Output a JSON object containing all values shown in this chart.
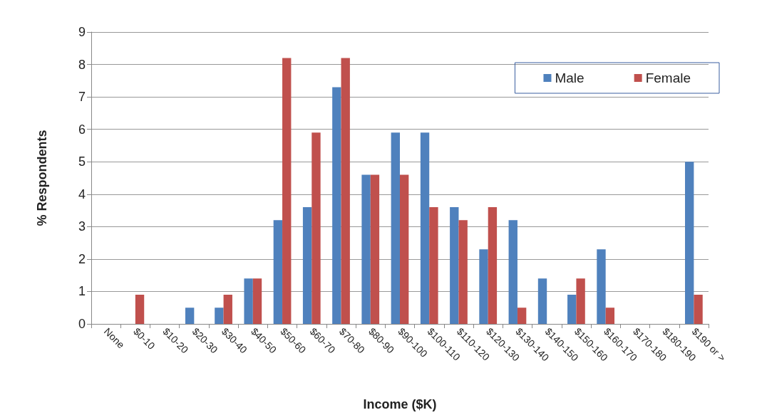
{
  "chart_data": {
    "type": "bar",
    "xlabel": "Income ($K)",
    "ylabel": "% Respondents",
    "categories": [
      "None",
      "$0-10",
      "$10-20",
      "$20-30",
      "$30-40",
      "$40-50",
      "$50-60",
      "$60-70",
      "$70-80",
      "$80-90",
      "$90-100",
      "$100-110",
      "$110-120",
      "$120-130",
      "$130-140",
      "$140-150",
      "$150-160",
      "$160-170",
      "$170-180",
      "$180-190",
      "$190 or >"
    ],
    "series": [
      {
        "name": "Male",
        "color": "#4f81bd",
        "values": [
          0,
          0,
          0,
          0.5,
          0.5,
          1.4,
          3.2,
          3.6,
          7.3,
          4.6,
          5.9,
          5.9,
          3.6,
          2.3,
          3.2,
          1.4,
          0.9,
          2.3,
          0,
          0,
          5.0
        ]
      },
      {
        "name": "Female",
        "color": "#c0504d",
        "values": [
          0,
          0.9,
          0,
          0,
          0.9,
          1.4,
          8.2,
          5.9,
          8.2,
          4.6,
          4.6,
          3.6,
          3.2,
          3.6,
          0.5,
          0,
          1.4,
          0.5,
          0,
          0,
          0.9
        ]
      }
    ],
    "ylim": [
      0,
      9
    ],
    "yticks": [
      0,
      1,
      2,
      3,
      4,
      5,
      6,
      7,
      8,
      9
    ],
    "grid": "y",
    "legend": "top right"
  }
}
